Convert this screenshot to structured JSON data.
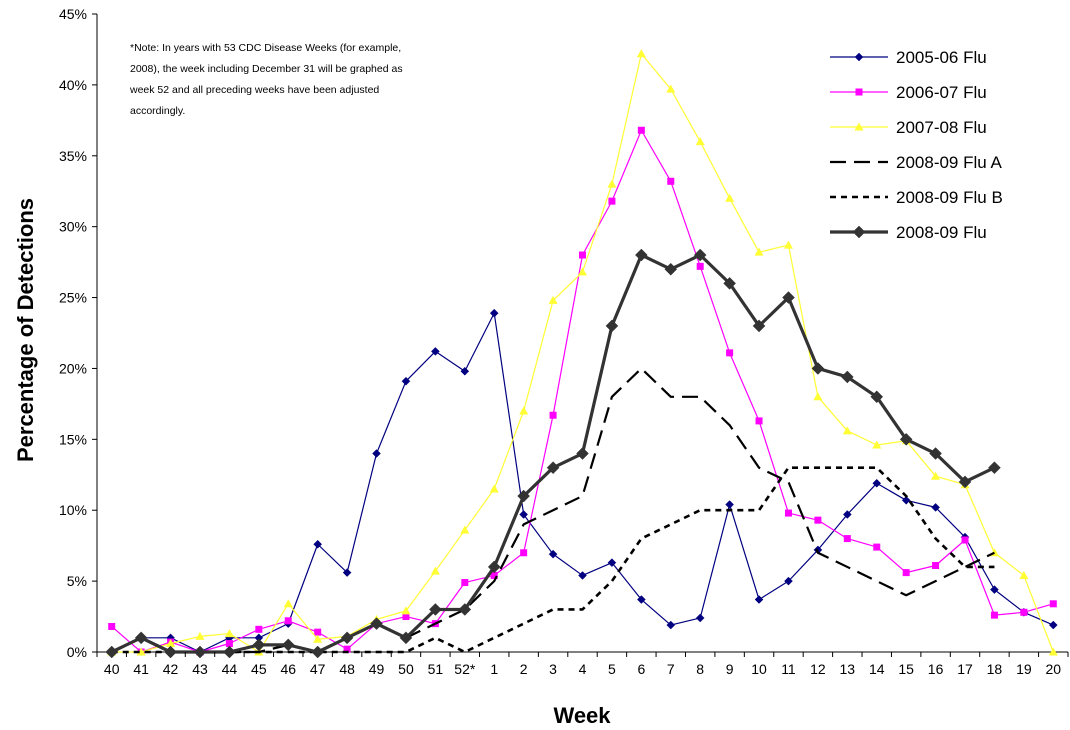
{
  "chart_data": {
    "type": "line",
    "xlabel": "Week",
    "ylabel": "Percentage of Detections",
    "ylim": [
      0,
      45
    ],
    "yticks": [
      "0%",
      "5%",
      "10%",
      "15%",
      "20%",
      "25%",
      "30%",
      "35%",
      "40%",
      "45%"
    ],
    "categories": [
      "40",
      "41",
      "42",
      "43",
      "44",
      "45",
      "46",
      "47",
      "48",
      "49",
      "50",
      "51",
      "52*",
      "1",
      "2",
      "3",
      "4",
      "5",
      "6",
      "7",
      "8",
      "9",
      "10",
      "11",
      "12",
      "13",
      "14",
      "15",
      "16",
      "17",
      "18",
      "19",
      "20"
    ],
    "note": [
      "*Note: In years with 53 CDC Disease Weeks (for example,",
      "2008), the week including December 31 will be graphed as",
      "week 52 and all preceding weeks have been adjusted",
      "accordingly."
    ],
    "legend_position": "top-right",
    "series": [
      {
        "name": "2005-06 Flu",
        "color": "#000080",
        "marker": "diamond",
        "dash": "solid",
        "width": 1.2,
        "values": [
          0,
          1,
          1,
          0,
          1,
          1,
          2,
          7.6,
          5.6,
          14,
          19.1,
          21.2,
          19.8,
          23.9,
          9.7,
          6.9,
          5.4,
          6.3,
          3.7,
          1.9,
          2.4,
          10.4,
          3.7,
          5,
          7.2,
          9.7,
          11.9,
          10.7,
          10.2,
          8.1,
          4.4,
          2.8,
          1.9
        ]
      },
      {
        "name": "2006-07 Flu",
        "color": "#FF00FF",
        "marker": "square",
        "dash": "solid",
        "width": 1.2,
        "values": [
          1.8,
          0,
          0.7,
          0,
          0.6,
          1.6,
          2.2,
          1.4,
          0.2,
          2,
          2.5,
          2,
          4.9,
          5.4,
          7,
          16.7,
          28,
          31.8,
          36.8,
          33.2,
          27.2,
          21.1,
          16.3,
          9.8,
          9.3,
          8,
          7.4,
          5.6,
          6.1,
          7.9,
          2.6,
          2.8,
          3.4
        ]
      },
      {
        "name": "2007-08 Flu",
        "color": "#FFFF33",
        "marker": "triangle",
        "dash": "solid",
        "width": 1.2,
        "values": [
          0,
          0,
          0.6,
          1.1,
          1.3,
          0,
          3.4,
          0.9,
          1.1,
          2.3,
          2.9,
          5.7,
          8.6,
          11.5,
          17,
          24.8,
          26.8,
          33,
          42.2,
          39.7,
          36,
          32,
          28.2,
          28.7,
          18,
          15.6,
          14.6,
          14.9,
          12.4,
          11.8,
          7,
          5.4,
          0
        ]
      },
      {
        "name": "2008-09 Flu A",
        "color": "#000000",
        "marker": "none",
        "dash": "long",
        "width": 2.2,
        "values": [
          0,
          1,
          0,
          0,
          0,
          0,
          0.5,
          0,
          1,
          2,
          1,
          2,
          3,
          5,
          9,
          10,
          11,
          18,
          20,
          18,
          18,
          16,
          13,
          12,
          7,
          6,
          5,
          4,
          5,
          6,
          7,
          null,
          null
        ]
      },
      {
        "name": "2008-09 Flu B",
        "color": "#000000",
        "marker": "none",
        "dash": "short",
        "width": 2.6,
        "values": [
          0,
          0,
          0,
          0,
          0,
          0,
          0,
          0,
          0,
          0,
          0,
          1,
          0,
          1,
          2,
          3,
          3,
          5,
          8,
          9,
          10,
          10,
          10,
          13,
          13,
          13,
          13,
          11,
          8,
          6,
          6,
          null,
          null
        ]
      },
      {
        "name": "2008-09 Flu",
        "color": "#333333",
        "marker": "diamond",
        "dash": "solid",
        "width": 3.2,
        "values": [
          0,
          1,
          0,
          0,
          0,
          0.5,
          0.5,
          0,
          1,
          2,
          1,
          3,
          3,
          6,
          11,
          13,
          14,
          23,
          28,
          27,
          28,
          26,
          23,
          25,
          20,
          19.4,
          18,
          15,
          14,
          12,
          13,
          null,
          null
        ]
      }
    ]
  }
}
